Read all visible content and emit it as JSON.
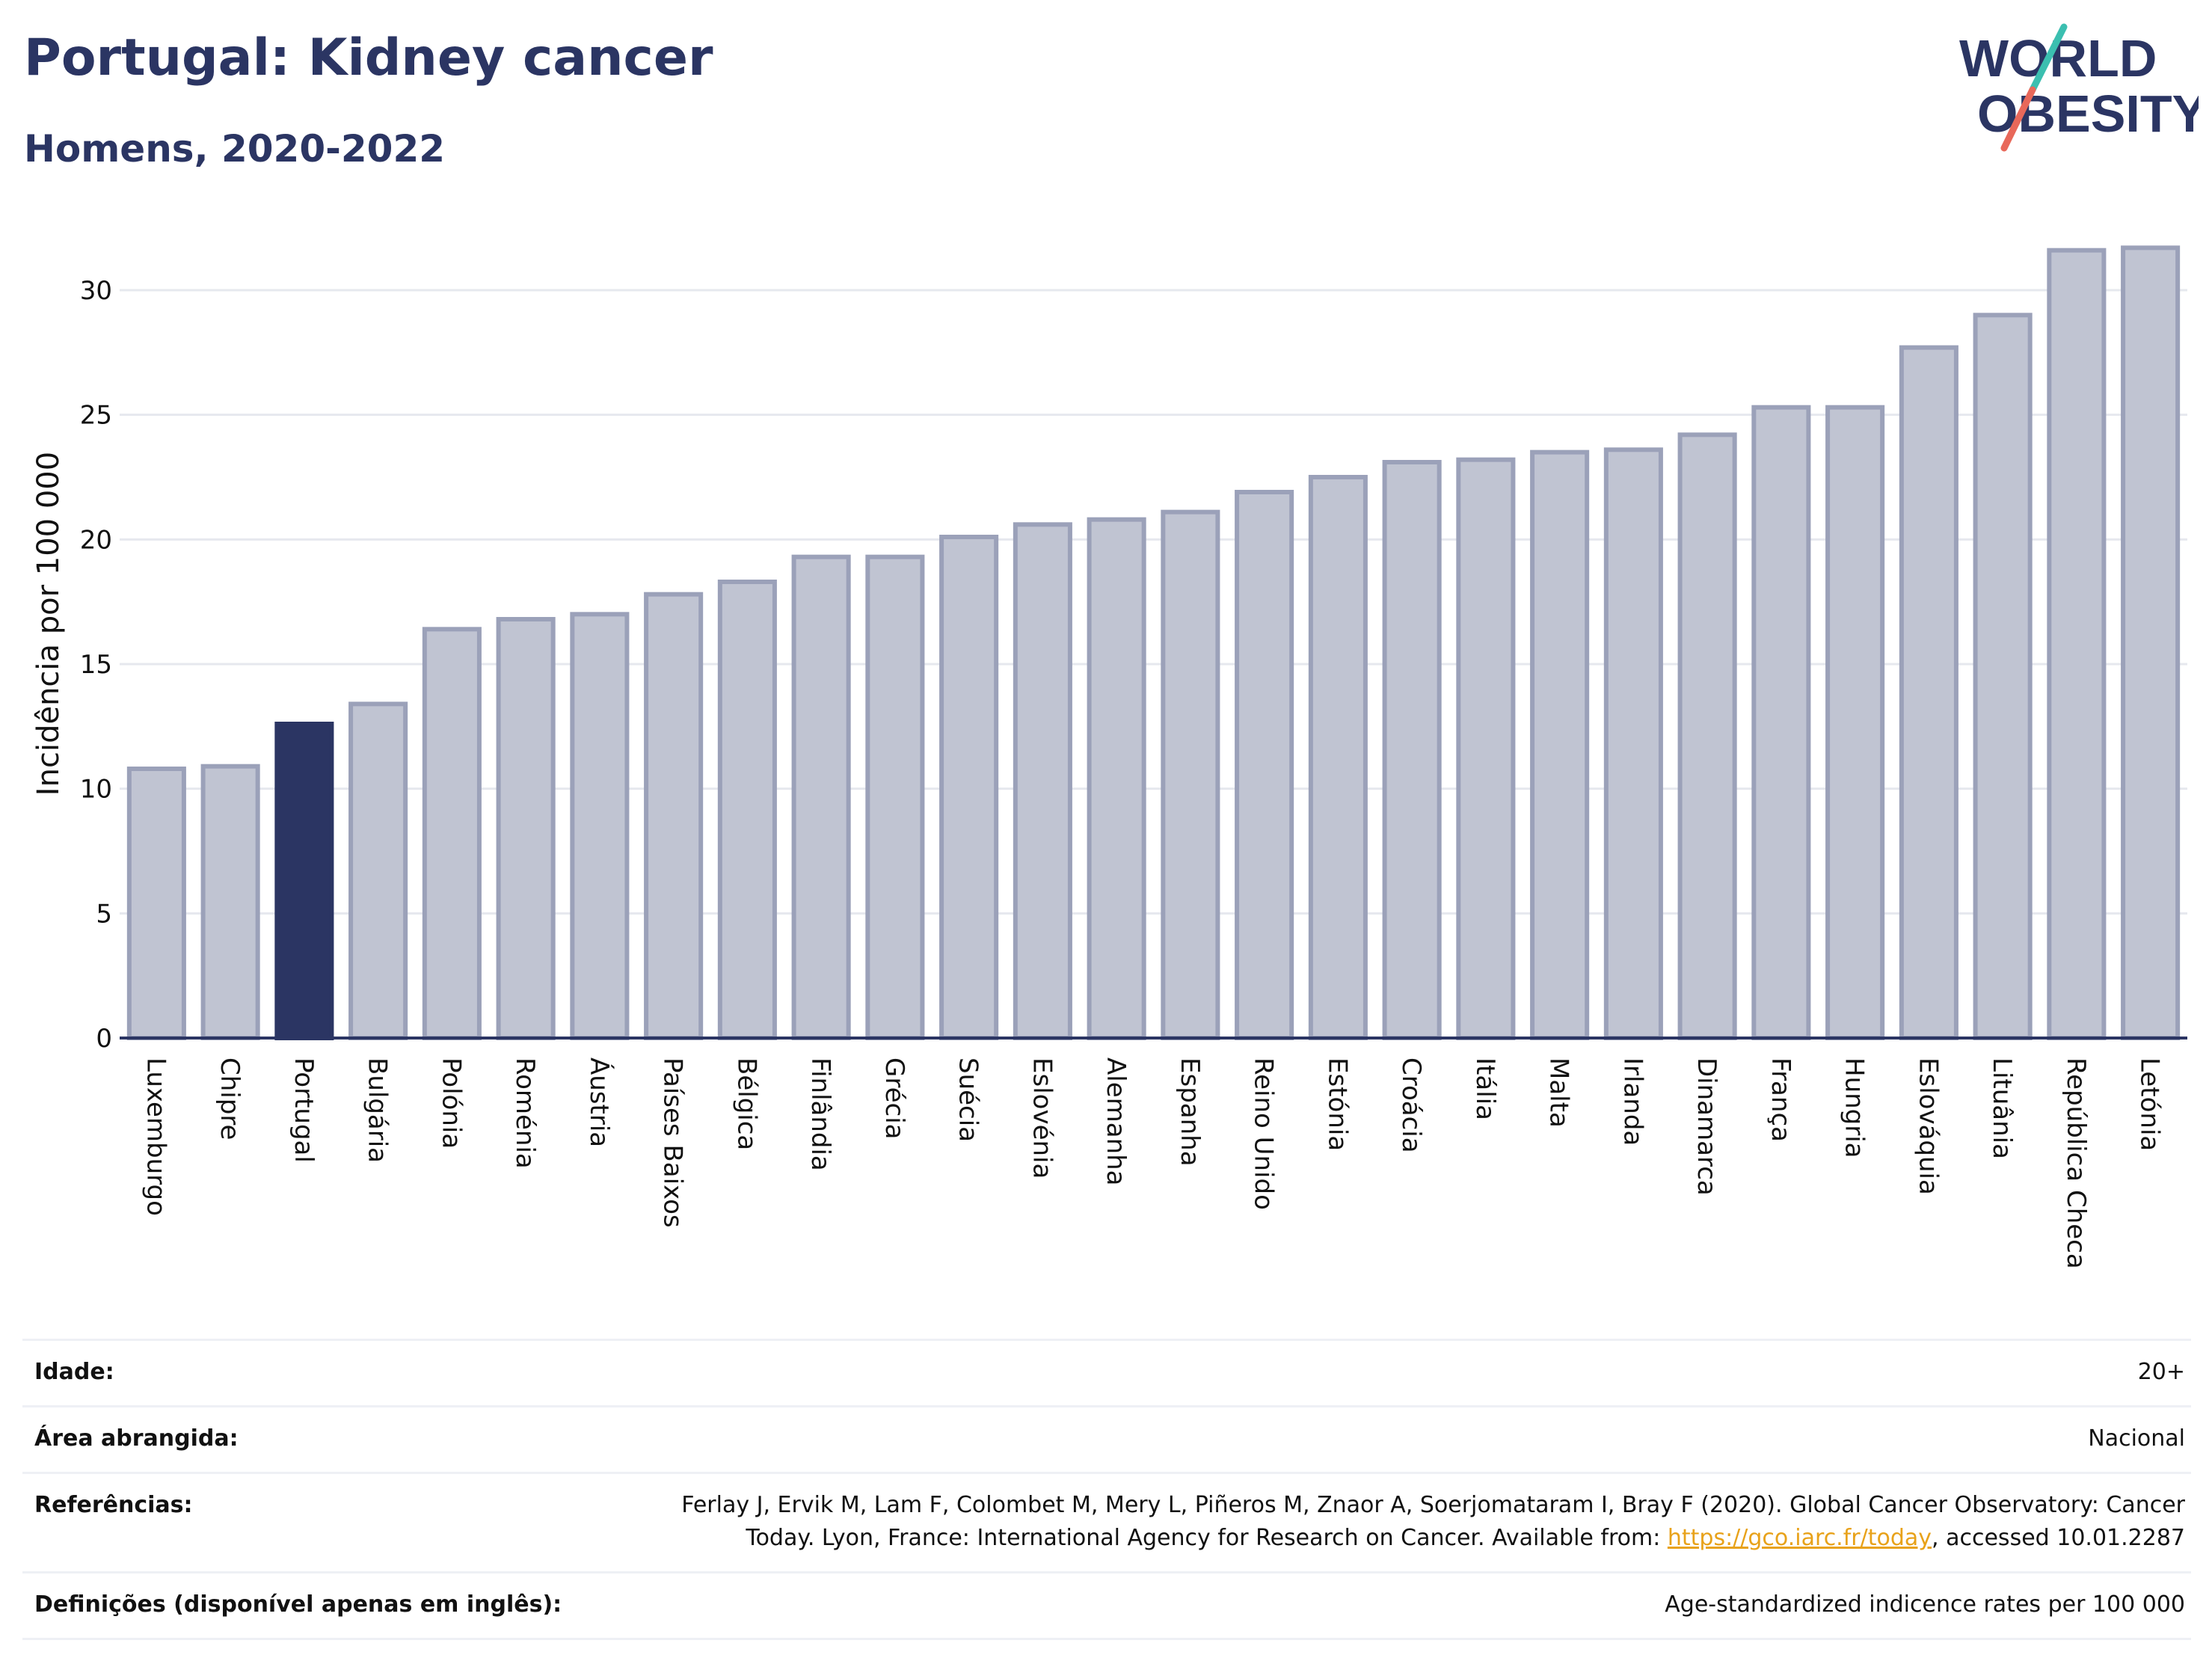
{
  "header": {
    "title": "Portugal: Kidney cancer",
    "subtitle": "Homens, 2020-2022"
  },
  "logo": {
    "line1": "WORLD",
    "line2": "OBESITY"
  },
  "chart_data": {
    "type": "bar",
    "ylabel": "Incidência por 100 000",
    "ylim": [
      0,
      32
    ],
    "yticks": [
      0,
      5,
      10,
      15,
      20,
      25,
      30
    ],
    "grid": true,
    "highlight": "Portugal",
    "colors": {
      "bar": "#c0c4d2",
      "bar_border": "#9ba1b9",
      "highlight": "#2b3563",
      "axis": "#2b3563",
      "grid": "#e6e8ee"
    },
    "categories": [
      "Luxemburgo",
      "Chipre",
      "Portugal",
      "Bulgária",
      "Polónia",
      "Roménia",
      "Áustria",
      "Países Baixos",
      "Bélgica",
      "Finlândia",
      "Grécia",
      "Suécia",
      "Eslovénia",
      "Alemanha",
      "Espanha",
      "Reino Unido",
      "Estónia",
      "Croácia",
      "Itália",
      "Malta",
      "Irlanda",
      "Dinamarca",
      "França",
      "Hungria",
      "Eslováquia",
      "Lituânia",
      "República Checa",
      "Letónia"
    ],
    "values": [
      10.8,
      10.9,
      12.6,
      13.4,
      16.4,
      16.8,
      17.0,
      17.8,
      18.3,
      19.3,
      19.3,
      20.1,
      20.6,
      20.8,
      21.1,
      21.9,
      22.5,
      23.1,
      23.2,
      23.5,
      23.6,
      24.2,
      25.3,
      25.3,
      27.7,
      29.0,
      31.6,
      31.7
    ]
  },
  "info": {
    "age_label": "Idade:",
    "age_value": "20+",
    "area_label": "Área abrangida:",
    "area_value": "Nacional",
    "ref_label": "Referências:",
    "ref_text1": "Ferlay J, Ervik M, Lam F, Colombet M, Mery L, Piñeros M, Znaor A, Soerjomataram I, Bray F (2020). Global Cancer Observatory: Cancer Today. Lyon, France: International Agency for Research on Cancer. Available from: ",
    "ref_link": "https://gco.iarc.fr/today",
    "ref_text2": ", accessed 10.01.2287",
    "def_label": "Definições (disponível apenas em inglês):",
    "def_value": "Age-standardized indicence rates per 100 000"
  }
}
